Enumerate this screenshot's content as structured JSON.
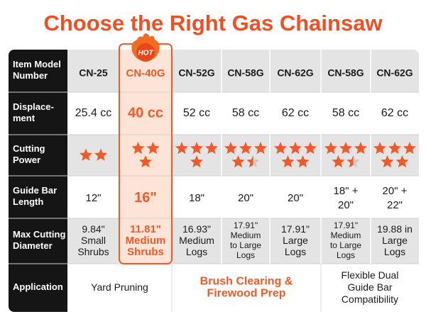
{
  "title": "Choose the Right Gas Chainsaw",
  "badge": "HOT",
  "row_labels": [
    [
      "Item Model",
      "Number"
    ],
    [
      "Displace-",
      "ment"
    ],
    [
      "Cutting",
      "Power"
    ],
    [
      "Guide Bar",
      "Length"
    ],
    [
      "Max Cutting",
      "Diameter"
    ],
    [
      "Application"
    ]
  ],
  "models": [
    "CN-25",
    "CN-40G",
    "CN-52G",
    "CN-58G",
    "CN-62G",
    "CN-58G",
    "CN-62G"
  ],
  "displacement": [
    "25.4 cc",
    "40 cc",
    "52 cc",
    "58 cc",
    "62 cc",
    "58 cc",
    "62 cc"
  ],
  "cutting_power": [
    2,
    3,
    4,
    4.5,
    5,
    4.5,
    5
  ],
  "guide_bar": [
    [
      "12\""
    ],
    [
      "16\""
    ],
    [
      "18\""
    ],
    [
      "20\""
    ],
    [
      "20\""
    ],
    [
      "18\" +",
      "20\""
    ],
    [
      "20\" +",
      "22\""
    ]
  ],
  "max_diameter": [
    [
      "9.84\"",
      "Small",
      "Shrubs"
    ],
    [
      "11.81\"",
      "Medium",
      "Shrubs"
    ],
    [
      "16.93\"",
      "Medium",
      "Logs"
    ],
    [
      "17.91\"",
      "Medium",
      "to Large",
      "Logs"
    ],
    [
      "17.91\"",
      "Large",
      "Logs"
    ],
    [
      "17.91\"",
      "Medium",
      "to Large",
      "Logs"
    ],
    [
      "19.88 in",
      "Large",
      "Logs"
    ]
  ],
  "application": [
    [
      "Yard Pruning"
    ],
    [
      "Brush Clearing &",
      "Firewood Prep"
    ],
    [
      "Flexible Dual",
      "Guide Bar",
      "Compatibility"
    ]
  ]
}
